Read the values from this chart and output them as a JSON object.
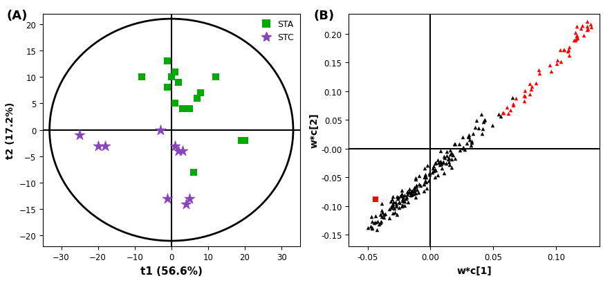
{
  "panel_A": {
    "title_label": "(A)",
    "xlabel": "t1 (56.6%)",
    "ylabel": "t2 (17.2%)",
    "xlim": [
      -35,
      35
    ],
    "ylim": [
      -22,
      22
    ],
    "xticks": [
      -30,
      -20,
      -10,
      0,
      10,
      20,
      30
    ],
    "yticks": [
      -20,
      -15,
      -10,
      -5,
      0,
      5,
      10,
      15,
      20
    ],
    "STA_x": [
      -1,
      0,
      1,
      2,
      -1,
      1,
      3,
      8,
      12,
      7,
      5,
      19,
      20,
      -8,
      6
    ],
    "STA_y": [
      13,
      10,
      11,
      9,
      8,
      5,
      4,
      7,
      10,
      6,
      4,
      -2,
      -2,
      10,
      -8
    ],
    "STC_x": [
      -25,
      -20,
      -18,
      -3,
      1,
      3,
      2,
      -1,
      5,
      4
    ],
    "STC_y": [
      -1,
      -3,
      -3,
      0,
      -3,
      -4,
      -4,
      -13,
      -13,
      -14
    ],
    "STA_color": "#00aa00",
    "STC_color": "#8844bb",
    "legend_STA": "STA",
    "legend_STC": "STC"
  },
  "panel_B": {
    "title_label": "(B)",
    "xlabel": "w*c[1]",
    "ylabel": "w*c[2]",
    "xlim": [
      -0.065,
      0.135
    ],
    "ylim": [
      -0.17,
      0.235
    ],
    "xticks": [
      -0.05,
      0.0,
      0.05,
      0.1
    ],
    "yticks": [
      -0.15,
      -0.1,
      -0.05,
      0.0,
      0.05,
      0.1,
      0.15,
      0.2
    ],
    "red_square_x": -0.044,
    "red_square_y": -0.088,
    "seed": 42
  }
}
